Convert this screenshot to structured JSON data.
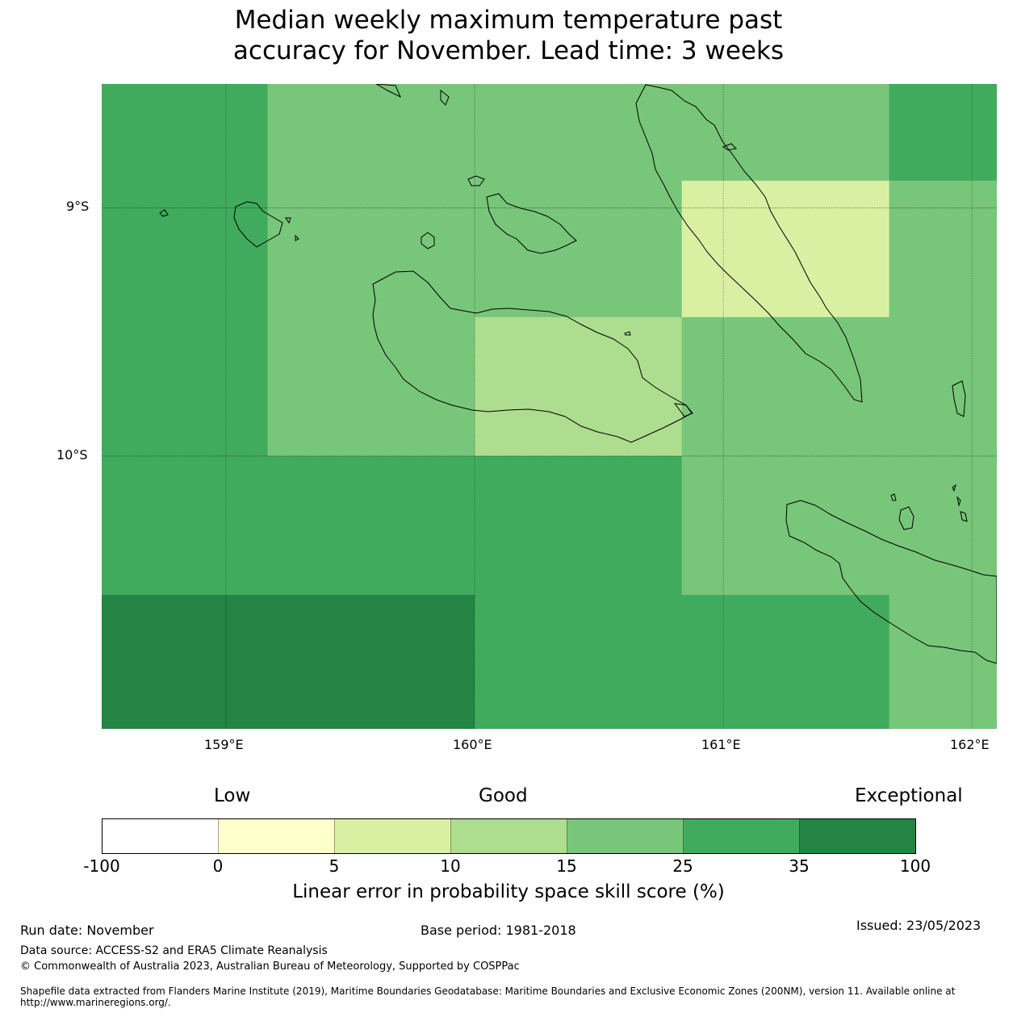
{
  "title_line1": "Median weekly maximum temperature past",
  "title_line2": "accuracy for November. Lead time: 3 weeks",
  "map": {
    "lon_range": [
      158.5,
      162.1
    ],
    "lat_range": [
      -11.1,
      -8.5
    ],
    "x_ticks": [
      "159°E",
      "160°E",
      "161°E",
      "162°E"
    ],
    "y_ticks": [
      "9°S",
      "10°S"
    ],
    "grid_columns_lon": [
      158.5,
      159.167,
      160.0,
      160.833,
      161.667,
      162.1
    ],
    "grid_rows_lat": [
      -8.5,
      -8.89,
      -9.44,
      -10.0,
      -10.56,
      -11.1
    ],
    "cell_categories": [
      [
        5,
        4,
        4,
        4,
        5
      ],
      [
        5,
        4,
        4,
        2,
        4
      ],
      [
        5,
        4,
        3,
        4,
        4
      ],
      [
        5,
        5,
        5,
        4,
        4
      ],
      [
        6,
        6,
        5,
        5,
        4
      ]
    ]
  },
  "colorbar": {
    "low_label": "Low",
    "good_label": "Good",
    "exceptional_label": "Exceptional",
    "ticks": [
      "-100",
      "0",
      "5",
      "10",
      "15",
      "25",
      "35",
      "100"
    ],
    "colors": [
      "#ffffff",
      "#ffffcc",
      "#d9f0a3",
      "#addd8e",
      "#78c679",
      "#41ab5d",
      "#238443"
    ],
    "label": "Linear error in probability space skill score (%)"
  },
  "footer": {
    "run_date": "Run date: November",
    "base_period": "Base period: 1981-2018",
    "issued": "Issued: 23/05/2023",
    "data_source": "Data source: ACCESS-S2 and ERA5 Climate Reanalysis",
    "copyright": "© Commonwealth of Australia 2023, Australian Bureau of Meteorology, Supported by COSPPac",
    "shapefile": "Shapefile data extracted from Flanders Marine Institute (2019), Maritime Boundaries Geodatabase: Maritime Boundaries and Exclusive Economic Zones (200NM), version 11. Available online at http://www.marineregions.org/."
  }
}
